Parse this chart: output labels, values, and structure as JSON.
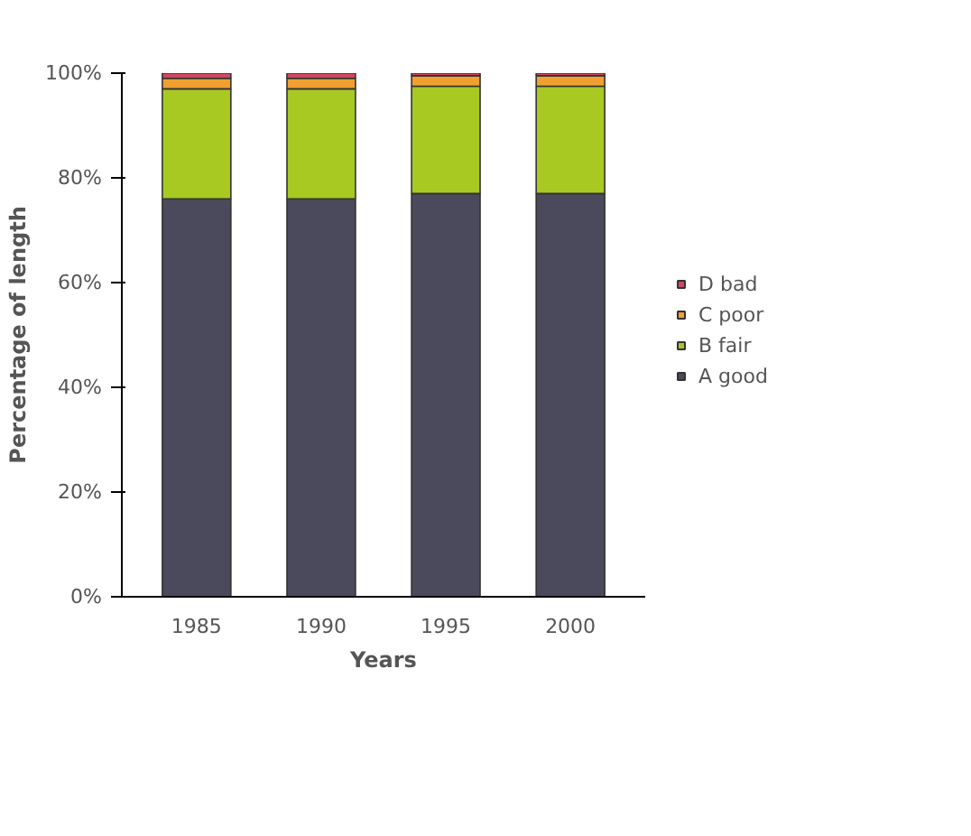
{
  "chart_data": {
    "type": "bar",
    "stacked": true,
    "xlabel": "Years",
    "ylabel": "Percentage of length",
    "categories": [
      "1985",
      "1990",
      "1995",
      "2000"
    ],
    "series": [
      {
        "name": "A good",
        "color": "#4a4a5c",
        "values": [
          76,
          76,
          77,
          77
        ]
      },
      {
        "name": "B fair",
        "color": "#a8c822",
        "values": [
          21,
          21,
          20.5,
          20.5
        ]
      },
      {
        "name": "C poor",
        "color": "#f0a030",
        "values": [
          2,
          2,
          2,
          2
        ]
      },
      {
        "name": "D bad",
        "color": "#d04860",
        "values": [
          1,
          1,
          0.5,
          0.5
        ]
      }
    ],
    "ylim": [
      0,
      100
    ],
    "yticks": [
      {
        "value": 0,
        "label": "0%"
      },
      {
        "value": 20,
        "label": "20%"
      },
      {
        "value": 40,
        "label": "40%"
      },
      {
        "value": 60,
        "label": "60%"
      },
      {
        "value": 80,
        "label": "80%"
      },
      {
        "value": 100,
        "label": "100%"
      }
    ],
    "grid": false,
    "legend": "right"
  }
}
